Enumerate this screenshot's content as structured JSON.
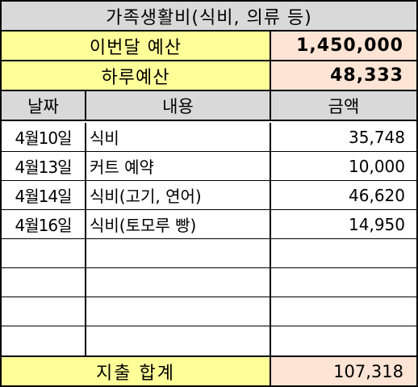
{
  "title": "가족생활비(식비, 의류 등)",
  "budget": {
    "month_label": "이번달 예산",
    "month_value": "1,450,000",
    "day_label": "하루예산",
    "day_value": "48,333"
  },
  "table": {
    "headers": {
      "date": "날짜",
      "item": "내용",
      "amount": "금액"
    },
    "rows": [
      {
        "date": "4월10일",
        "item": "식비",
        "amount": "35,748"
      },
      {
        "date": "4월13일",
        "item": "커트 예약",
        "amount": "10,000"
      },
      {
        "date": "4월14일",
        "item": "식비(고기, 연어)",
        "amount": "46,620"
      },
      {
        "date": "4월16일",
        "item": "식비(토모루 빵)",
        "amount": "14,950"
      },
      {
        "date": "",
        "item": "",
        "amount": ""
      },
      {
        "date": "",
        "item": "",
        "amount": ""
      },
      {
        "date": "",
        "item": "",
        "amount": ""
      },
      {
        "date": "",
        "item": "",
        "amount": ""
      }
    ]
  },
  "total": {
    "label": "지출 합계",
    "value": "107,318"
  },
  "colors": {
    "title_bg": "#d9d9d9",
    "label_bg": "#ffff99",
    "value_bg": "#fde4d4",
    "border": "#000000"
  }
}
